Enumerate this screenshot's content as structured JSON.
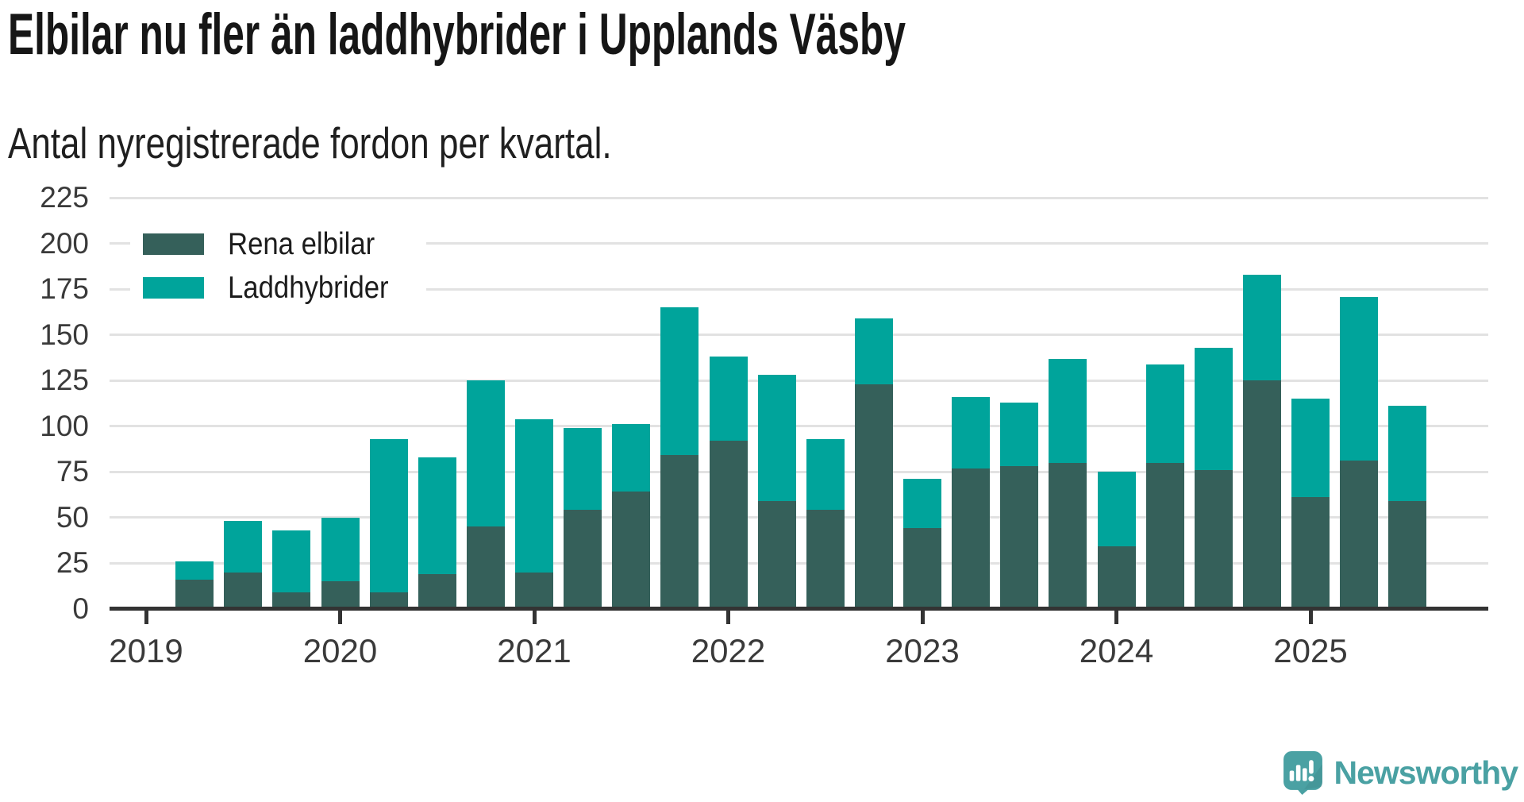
{
  "title": "Elbilar nu fler än laddhybrider i Upplands Väsby",
  "subtitle": "Antal nyregistrerade fordon per kvartal.",
  "legend": {
    "items": [
      {
        "label": "Rena elbilar",
        "color": "#35605a"
      },
      {
        "label": "Laddhybrider",
        "color": "#00a49b"
      }
    ]
  },
  "branding": {
    "name": "Newsworthy",
    "color": "#4aa1a3"
  },
  "colors": {
    "background": "#ffffff",
    "title_text": "#161616",
    "subtitle_text": "#1f1f1f",
    "axis_line": "#333333",
    "axis_labels": "#3a3a3a",
    "gridline": "#e2e2e2",
    "rena_elbilar": "#35605a",
    "laddhybrider": "#00a49b",
    "brand_teal": "#4aa1a3"
  },
  "chart_data": {
    "type": "bar",
    "stacked": true,
    "title": "Elbilar nu fler än laddhybrider i Upplands Väsby",
    "subtitle": "Antal nyregistrerade fordon per kvartal.",
    "categories": [
      "2019 Q2",
      "2019 Q3",
      "2019 Q4",
      "2020 Q1",
      "2020 Q2",
      "2020 Q3",
      "2020 Q4",
      "2021 Q1",
      "2021 Q2",
      "2021 Q3",
      "2021 Q4",
      "2022 Q1",
      "2022 Q2",
      "2022 Q3",
      "2022 Q4",
      "2023 Q1",
      "2023 Q2",
      "2023 Q3",
      "2023 Q4",
      "2024 Q1",
      "2024 Q2",
      "2024 Q3",
      "2024 Q4",
      "2025 Q1",
      "2025 Q2",
      "2025 Q3"
    ],
    "series": [
      {
        "name": "Rena elbilar",
        "color": "#35605a",
        "values": [
          16,
          20,
          9,
          15,
          9,
          19,
          45,
          20,
          54,
          64,
          84,
          92,
          59,
          54,
          123,
          44,
          77,
          78,
          80,
          34,
          80,
          76,
          125,
          61,
          81,
          59
        ]
      },
      {
        "name": "Laddhybrider",
        "color": "#00a49b",
        "values": [
          10,
          28,
          34,
          35,
          84,
          64,
          80,
          84,
          45,
          37,
          81,
          46,
          69,
          39,
          36,
          27,
          39,
          35,
          57,
          41,
          54,
          67,
          58,
          54,
          90,
          52
        ]
      }
    ],
    "totals": [
      26,
      48,
      43,
      50,
      93,
      83,
      125,
      104,
      99,
      101,
      165,
      138,
      128,
      93,
      159,
      71,
      116,
      113,
      137,
      75,
      134,
      143,
      183,
      115,
      171,
      111
    ],
    "x_axis": {
      "tick_labels": [
        "2019",
        "2020",
        "2021",
        "2022",
        "2023",
        "2024",
        "2025"
      ],
      "note": "ticks mark Q1 of each year; first bar is 2019 Q2"
    },
    "y_axis": {
      "min": 0,
      "max": 225,
      "tick_interval": 25,
      "tick_labels": [
        "0",
        "25",
        "50",
        "75",
        "100",
        "125",
        "150",
        "175",
        "200",
        "225"
      ]
    },
    "grid": true,
    "legend_position": "top-left"
  }
}
